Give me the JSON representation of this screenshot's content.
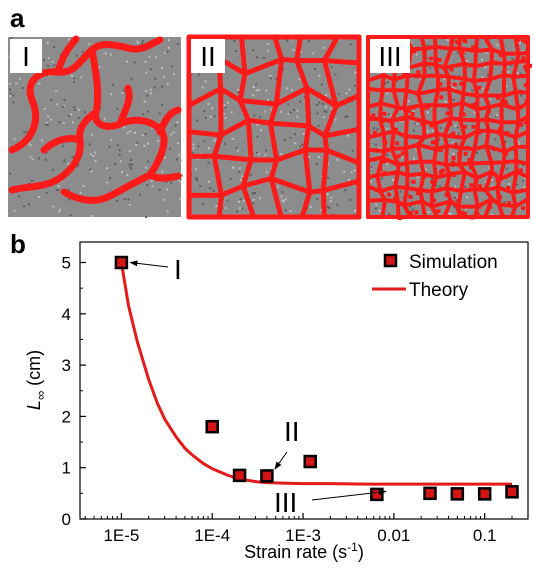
{
  "panel_a": {
    "letter": "a",
    "images": [
      {
        "label": "I",
        "pattern": "network-coarse"
      },
      {
        "label": "II",
        "pattern": "network-medium"
      },
      {
        "label": "III",
        "pattern": "network-fine"
      }
    ],
    "colors": {
      "background": "#8c8c8c",
      "network": "#ff1a1a"
    }
  },
  "panel_b": {
    "letter": "b",
    "annotations": [
      "I",
      "II",
      "III"
    ]
  },
  "chart_data": {
    "type": "scatter",
    "xlabel_main": "Strain rate (s",
    "xlabel_sup": "-1",
    "xlabel_end": ")",
    "ylabel_main": "L",
    "ylabel_sub": "∞",
    "ylabel_unit": " (cm)",
    "xscale": "log",
    "xlim": [
      3.5e-06,
      0.3
    ],
    "ylim": [
      0,
      5.4
    ],
    "xticks": [
      1e-05,
      0.0001,
      0.001,
      0.01,
      0.1
    ],
    "xtick_labels": [
      "1E-5",
      "1E-4",
      "1E-3",
      "0.01",
      "0.1"
    ],
    "yticks": [
      0,
      1,
      2,
      3,
      4,
      5
    ],
    "ytick_labels": [
      "0",
      "1",
      "2",
      "3",
      "4",
      "5"
    ],
    "legend_position": "top-right",
    "series": [
      {
        "name": "Simulation",
        "kind": "scatter",
        "marker_color": "#d41515",
        "marker_edge": "#000000",
        "x": [
          1e-05,
          0.0001,
          0.0002,
          0.0004,
          0.0012,
          0.0065,
          0.025,
          0.05,
          0.1,
          0.2
        ],
        "y": [
          5.0,
          1.8,
          0.85,
          0.84,
          1.12,
          0.48,
          0.5,
          0.49,
          0.49,
          0.53
        ]
      },
      {
        "name": "Theory",
        "kind": "line",
        "line_color": "#e31a1a",
        "x": [
          1e-05,
          1.2e-05,
          1.5e-05,
          2e-05,
          2.5e-05,
          3e-05,
          4e-05,
          5e-05,
          6e-05,
          8e-05,
          0.0001,
          0.00012,
          0.00015,
          0.0002,
          0.0003,
          0.0004,
          0.0006,
          0.001,
          0.002,
          0.005,
          0.01,
          0.03,
          0.1,
          0.2
        ],
        "y": [
          5.0,
          4.15,
          3.45,
          2.72,
          2.25,
          1.95,
          1.6,
          1.38,
          1.25,
          1.08,
          0.98,
          0.92,
          0.85,
          0.78,
          0.73,
          0.71,
          0.7,
          0.69,
          0.69,
          0.68,
          0.68,
          0.68,
          0.68,
          0.68
        ]
      }
    ],
    "arrow_targets": [
      {
        "label": "I",
        "x": 1e-05,
        "y": 5.0
      },
      {
        "label": "II",
        "x": 0.0004,
        "y": 0.84
      },
      {
        "label": "III",
        "x": 0.0065,
        "y": 0.48
      }
    ]
  }
}
